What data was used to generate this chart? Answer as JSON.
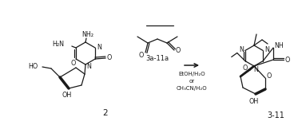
{
  "background_color": "#ffffff",
  "line_color": "#1a1a1a",
  "fig_width": 3.78,
  "fig_height": 1.62,
  "dpi": 100,
  "label_2": "2",
  "label_3_11": "3-11",
  "label_3a_11a": "3a-11a",
  "arrow_label_line1": "EtOH/H₂O",
  "arrow_label_line2": "or",
  "arrow_label_line3": "CH₃CN/H₂O",
  "NH2_top": "NH₂",
  "H2N_left": "H₂N",
  "N_label": "N",
  "O_label": "O",
  "HO_label": "HO",
  "OH_label": "OH",
  "NH_label": "NH",
  "font_size": 5.8,
  "font_size_num": 6.5
}
